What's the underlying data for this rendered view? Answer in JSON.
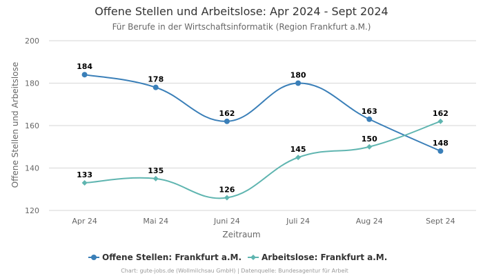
{
  "chart_data": {
    "type": "line",
    "title": "Offene Stellen und Arbeitslose: Apr 2024 - Sept 2024",
    "subtitle": "Für Berufe in der Wirtschaftsinformatik (Region Frankfurt a.M.)",
    "xlabel": "Zeitraum",
    "ylabel": "Offene Stellen und Arbeitslose",
    "categories": [
      "Apr 24",
      "Mai 24",
      "Juni 24",
      "Juli 24",
      "Aug 24",
      "Sept 24"
    ],
    "ylim": [
      120,
      200
    ],
    "yticks": [
      120,
      140,
      160,
      180,
      200
    ],
    "grid": true,
    "legend_position": "bottom-center",
    "series": [
      {
        "name": "Offene Stellen: Frankfurt a.M.",
        "values": [
          184,
          178,
          162,
          180,
          163,
          148
        ],
        "color": "#3a7fb8",
        "marker": "circle"
      },
      {
        "name": "Arbeitslose: Frankfurt a.M.",
        "values": [
          133,
          135,
          126,
          145,
          150,
          162
        ],
        "color": "#5fb5b0",
        "marker": "diamond"
      }
    ],
    "credit": "Chart: gute-jobs.de (Wollmilchsau GmbH) | Datenquelle: Bundesagentur für Arbeit"
  }
}
